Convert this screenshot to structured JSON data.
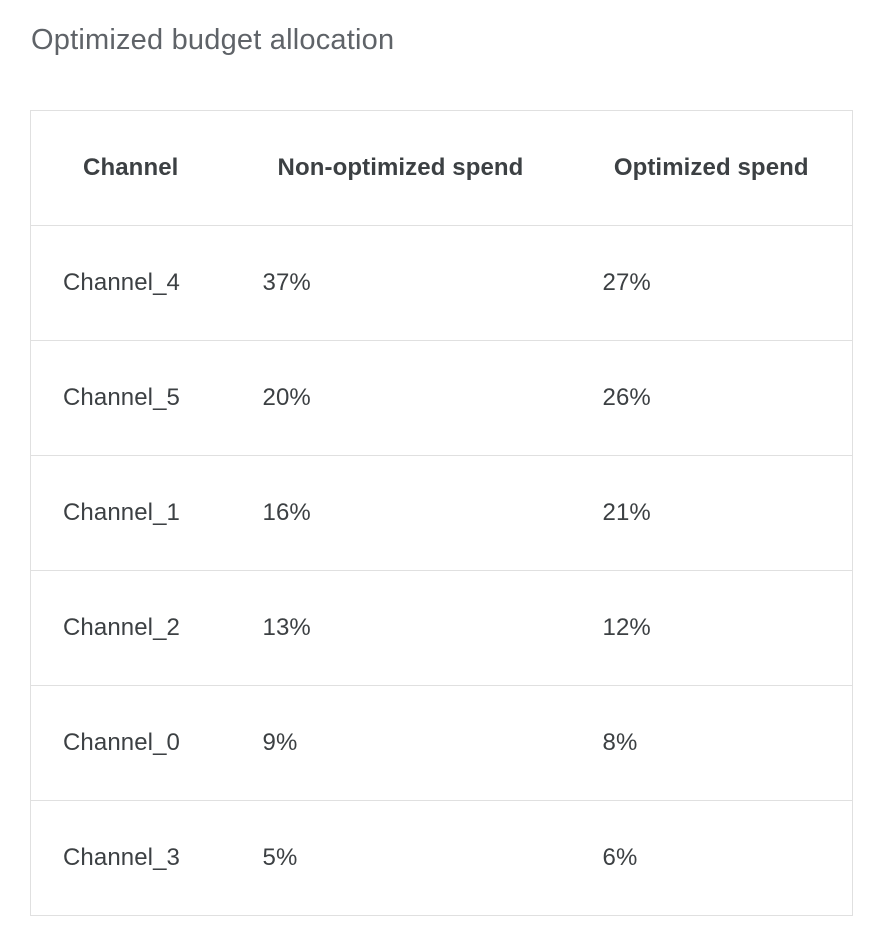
{
  "title": "Optimized budget allocation",
  "table": {
    "columns": [
      "Channel",
      "Non-optimized spend",
      "Optimized spend"
    ],
    "rows": [
      [
        "Channel_4",
        "37%",
        "27%"
      ],
      [
        "Channel_5",
        "20%",
        "26%"
      ],
      [
        "Channel_1",
        "16%",
        "21%"
      ],
      [
        "Channel_2",
        "13%",
        "12%"
      ],
      [
        "Channel_0",
        "9%",
        "8%"
      ],
      [
        "Channel_3",
        "5%",
        "6%"
      ]
    ]
  },
  "chart_data": {
    "type": "table",
    "title": "Optimized budget allocation",
    "columns": [
      "Channel",
      "Non-optimized spend",
      "Optimized spend"
    ],
    "rows": [
      {
        "channel": "Channel_4",
        "non_optimized_spend_pct": 37,
        "optimized_spend_pct": 27
      },
      {
        "channel": "Channel_5",
        "non_optimized_spend_pct": 20,
        "optimized_spend_pct": 26
      },
      {
        "channel": "Channel_1",
        "non_optimized_spend_pct": 16,
        "optimized_spend_pct": 21
      },
      {
        "channel": "Channel_2",
        "non_optimized_spend_pct": 13,
        "optimized_spend_pct": 12
      },
      {
        "channel": "Channel_0",
        "non_optimized_spend_pct": 9,
        "optimized_spend_pct": 8
      },
      {
        "channel": "Channel_3",
        "non_optimized_spend_pct": 5,
        "optimized_spend_pct": 6
      }
    ]
  },
  "colors": {
    "title_text": "#5f6368",
    "header_text": "#3c4043",
    "cell_text": "#3c4043",
    "border": "#e0e0e0",
    "background": "#ffffff"
  }
}
